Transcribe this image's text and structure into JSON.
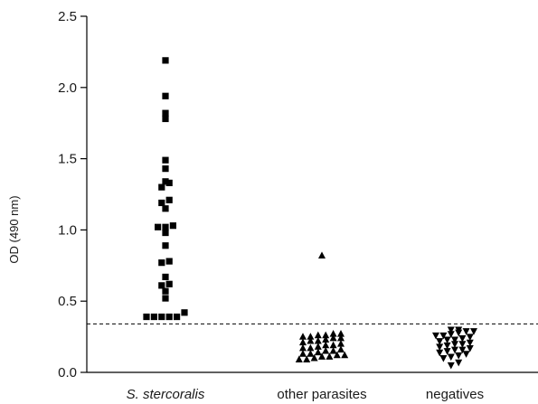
{
  "chart_data": {
    "type": "scatter",
    "title": "",
    "xlabel": "",
    "ylabel": "OD (490 nm)",
    "ylim": [
      0,
      2.5
    ],
    "yticks": [
      "0.0",
      "0.5",
      "1.0",
      "1.5",
      "2.0",
      "2.5"
    ],
    "grid": false,
    "legend": "none",
    "cutoff": 0.34,
    "categories": [
      "S. stercoralis",
      "other parasites",
      "negatives"
    ],
    "series": [
      {
        "category": "S. stercoralis",
        "marker": "square",
        "values": [
          2.19,
          1.94,
          1.82,
          1.78,
          1.49,
          1.43,
          1.34,
          1.33,
          1.3,
          1.21,
          1.19,
          1.15,
          1.02,
          1.02,
          1.03,
          0.98,
          0.89,
          0.78,
          0.77,
          0.67,
          0.62,
          0.61,
          0.57,
          0.52,
          0.42,
          0.39,
          0.39,
          0.39,
          0.39,
          0.39
        ]
      },
      {
        "category": "other parasites",
        "marker": "triangle-up",
        "values": [
          0.82,
          0.27,
          0.27,
          0.26,
          0.26,
          0.25,
          0.25,
          0.24,
          0.24,
          0.23,
          0.22,
          0.22,
          0.21,
          0.2,
          0.19,
          0.19,
          0.18,
          0.17,
          0.17,
          0.16,
          0.15,
          0.15,
          0.14,
          0.13,
          0.13,
          0.12,
          0.12,
          0.11,
          0.11,
          0.1,
          0.09,
          0.09
        ]
      },
      {
        "category": "negatives",
        "marker": "triangle-down",
        "values": [
          0.3,
          0.3,
          0.29,
          0.29,
          0.28,
          0.27,
          0.26,
          0.26,
          0.25,
          0.24,
          0.23,
          0.23,
          0.22,
          0.21,
          0.2,
          0.2,
          0.19,
          0.18,
          0.17,
          0.16,
          0.16,
          0.15,
          0.14,
          0.13,
          0.12,
          0.11,
          0.1,
          0.07,
          0.05
        ]
      }
    ]
  }
}
